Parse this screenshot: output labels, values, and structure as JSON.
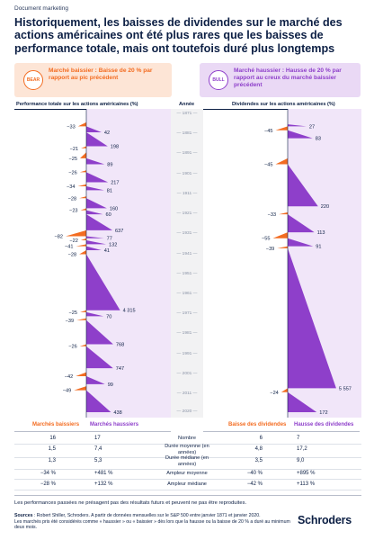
{
  "doc_tag": "Document marketing",
  "title": "Historiquement, les baisses de dividendes sur le marché des actions américaines ont été plus rares que les baisses de performance totale, mais ont toutefois duré plus longtemps",
  "legend": {
    "bear": {
      "label": "Marché baissier : Baisse de 20 % par rapport au pic précédent",
      "icon_name": "bear-icon",
      "icon_text": "BEAR",
      "color": "#f36c21",
      "bg": "#fde5d6"
    },
    "bull": {
      "label": "Marché haussier : Hausse de 20 % par rapport au creux du marché baissier précédent",
      "icon_name": "bull-icon",
      "icon_text": "BULL",
      "color": "#8e3fca",
      "bg": "#ead9f5"
    }
  },
  "headers": {
    "left": "Performance totale sur les actions américaines (%)",
    "center": "Année",
    "right": "Dividendes sur les actions américaines (%)"
  },
  "colors": {
    "bear": "#f36c21",
    "bull": "#8e3fca",
    "bull_light": "#f1e6f9",
    "bear_light": "#fdeee4",
    "navy": "#0c1f44"
  },
  "chart_data": [
    {
      "type": "bar",
      "name": "Performance totale sur les actions américaines (%)",
      "year_ticks": [
        1871,
        1881,
        1891,
        1901,
        1911,
        1921,
        1931,
        1941,
        1951,
        1961,
        1971,
        1981,
        1991,
        2001,
        2011,
        2020
      ],
      "year_range": [
        1871,
        2020
      ],
      "episodes": [
        {
          "kind": "bear",
          "value": -33,
          "start": 1875,
          "end": 1877
        },
        {
          "kind": "bull",
          "value": 42,
          "start": 1877,
          "end": 1880
        },
        {
          "kind": "bull",
          "value": 198,
          "start": 1880,
          "end": 1887
        },
        {
          "kind": "bear",
          "value": -21,
          "start": 1887,
          "end": 1888
        },
        {
          "kind": "bear",
          "value": -25,
          "start": 1890,
          "end": 1893
        },
        {
          "kind": "bull",
          "value": 89,
          "start": 1893,
          "end": 1896
        },
        {
          "kind": "bear",
          "value": -26,
          "start": 1899,
          "end": 1900
        },
        {
          "kind": "bull",
          "value": 217,
          "start": 1900,
          "end": 1905
        },
        {
          "kind": "bear",
          "value": -34,
          "start": 1906,
          "end": 1907
        },
        {
          "kind": "bull",
          "value": 81,
          "start": 1907,
          "end": 1909
        },
        {
          "kind": "bear",
          "value": -28,
          "start": 1912,
          "end": 1913
        },
        {
          "kind": "bull",
          "value": 160,
          "start": 1913,
          "end": 1918
        },
        {
          "kind": "bear",
          "value": -23,
          "start": 1918,
          "end": 1919
        },
        {
          "kind": "bull",
          "value": 60,
          "start": 1919,
          "end": 1921
        },
        {
          "kind": "bull",
          "value": 637,
          "start": 1921,
          "end": 1929
        },
        {
          "kind": "bear",
          "value": -82,
          "start": 1929,
          "end": 1932
        },
        {
          "kind": "bull",
          "value": 77,
          "start": 1932,
          "end": 1933
        },
        {
          "kind": "bear",
          "value": -22,
          "start": 1933,
          "end": 1934
        },
        {
          "kind": "bull",
          "value": 132,
          "start": 1934,
          "end": 1936
        },
        {
          "kind": "bear",
          "value": -41,
          "start": 1936,
          "end": 1937
        },
        {
          "kind": "bull",
          "value": 41,
          "start": 1937,
          "end": 1939
        },
        {
          "kind": "bear",
          "value": -28,
          "start": 1939,
          "end": 1941
        },
        {
          "kind": "bull",
          "value": 4315,
          "start": 1941,
          "end": 1969
        },
        {
          "kind": "bear",
          "value": -25,
          "start": 1969,
          "end": 1970
        },
        {
          "kind": "bull",
          "value": 70,
          "start": 1970,
          "end": 1972
        },
        {
          "kind": "bear",
          "value": -39,
          "start": 1973,
          "end": 1974
        },
        {
          "kind": "bull",
          "value": 768,
          "start": 1974,
          "end": 1986
        },
        {
          "kind": "bear",
          "value": -26,
          "start": 1986,
          "end": 1987
        },
        {
          "kind": "bull",
          "value": 747,
          "start": 1987,
          "end": 1998
        },
        {
          "kind": "bear",
          "value": -42,
          "start": 2000,
          "end": 2002
        },
        {
          "kind": "bull",
          "value": 99,
          "start": 2002,
          "end": 2006
        },
        {
          "kind": "bear",
          "value": -49,
          "start": 2007,
          "end": 2009
        },
        {
          "kind": "bull",
          "value": 438,
          "start": 2009,
          "end": 2020
        }
      ]
    },
    {
      "type": "bar",
      "name": "Dividendes sur les actions américaines (%)",
      "year_ticks": [
        1871,
        1881,
        1891,
        1901,
        1911,
        1921,
        1931,
        1941,
        1951,
        1961,
        1971,
        1981,
        1991,
        2001,
        2011,
        2020
      ],
      "year_range": [
        1871,
        2020
      ],
      "episodes": [
        {
          "kind": "bull",
          "value": 27,
          "start": 1876,
          "end": 1877
        },
        {
          "kind": "bear",
          "value": -45,
          "start": 1877,
          "end": 1879
        },
        {
          "kind": "bull",
          "value": 83,
          "start": 1879,
          "end": 1883
        },
        {
          "kind": "bear",
          "value": -45,
          "start": 1893,
          "end": 1896
        },
        {
          "kind": "bull",
          "value": 220,
          "start": 1896,
          "end": 1917
        },
        {
          "kind": "bear",
          "value": -33,
          "start": 1920,
          "end": 1921
        },
        {
          "kind": "bull",
          "value": 113,
          "start": 1921,
          "end": 1930
        },
        {
          "kind": "bear",
          "value": -55,
          "start": 1930,
          "end": 1933
        },
        {
          "kind": "bull",
          "value": 91,
          "start": 1933,
          "end": 1937
        },
        {
          "kind": "bear",
          "value": -39,
          "start": 1937,
          "end": 1938
        },
        {
          "kind": "bull",
          "value": 5557,
          "start": 1938,
          "end": 2008
        },
        {
          "kind": "bear",
          "value": -24,
          "start": 2008,
          "end": 2010
        },
        {
          "kind": "bull",
          "value": 172,
          "start": 2010,
          "end": 2020
        }
      ]
    }
  ],
  "table": {
    "headers": {
      "bear_left": "Marchés baissiers",
      "bull_left": "Marchés haussiers",
      "bear_right": "Baisse des dividendes",
      "bull_right": "Hausse des dividendes"
    },
    "rows": [
      {
        "label": "Nombre",
        "bear_left": "16",
        "bull_left": "17",
        "bear_right": "6",
        "bull_right": "7"
      },
      {
        "label": "Durée moyenne (en années)",
        "bear_left": "1,5",
        "bull_left": "7,4",
        "bear_right": "4,8",
        "bull_right": "17,2"
      },
      {
        "label": "Durée médiane (en années)",
        "bear_left": "1,3",
        "bull_left": "5,3",
        "bear_right": "3,5",
        "bull_right": "9,0"
      },
      {
        "label": "Ampleur moyenne",
        "bear_left": "−34 %",
        "bull_left": "+481 %",
        "bear_right": "−40 %",
        "bull_right": "+895 %"
      },
      {
        "label": "Ampleur médiane",
        "bear_left": "−28 %",
        "bull_left": "+132 %",
        "bear_right": "−42 %",
        "bull_right": "+113 %"
      }
    ]
  },
  "footer": {
    "disclaimer": "Les performances passées ne présagent pas des résultats futurs et peuvent ne pas être reproduites.",
    "sources_label": "Sources",
    "sources": " : Robert Shiller, Schroders. A partir de données mensuelles sur le S&P 500 entre janvier 1871 et janvier 2020.",
    "note": "Les marchés pris été considérés comme « haussier » ou « baissier » dès lors que la hausse ou la baisse de 20 % a duré au minimum deux mois."
  },
  "brand": "Schroders"
}
